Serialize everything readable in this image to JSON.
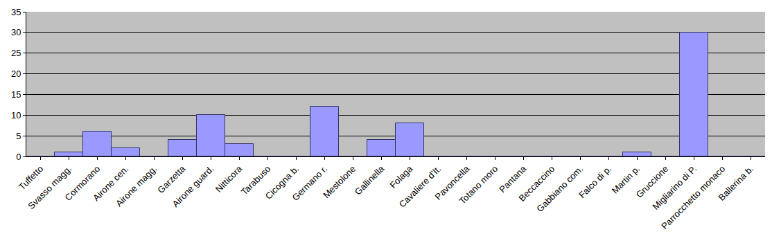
{
  "chart_data": {
    "type": "bar",
    "categories": [
      "Tuffetto",
      "Svasso magg.",
      "Cormorano",
      "Airone cen.",
      "Airone magg.",
      "Garzetta",
      "Airone guard.",
      "Nitticora",
      "Tarabuso",
      "Cicogna b.",
      "Germano r.",
      "Mestolone",
      "Gallinella",
      "Folaga",
      "Cavaliere d'It.",
      "Pavoncella",
      "Totano moro",
      "Pantana",
      "Beccaccino",
      "Gabbiano com.",
      "Falco di p.",
      "Martin p.",
      "Gruccione",
      "Migliarino di P.",
      "Parrocchetto monaco",
      "Ballerina b."
    ],
    "values": [
      0,
      1,
      6,
      2,
      0,
      4,
      10,
      3,
      0,
      0,
      12,
      0,
      4,
      8,
      0,
      0,
      0,
      0,
      0,
      0,
      0,
      1,
      0,
      30,
      0,
      0
    ],
    "color": "#9999ff",
    "ylim": [
      0,
      35
    ],
    "yticks": [
      0,
      5,
      10,
      15,
      20,
      25,
      30,
      35
    ],
    "grid": true
  }
}
